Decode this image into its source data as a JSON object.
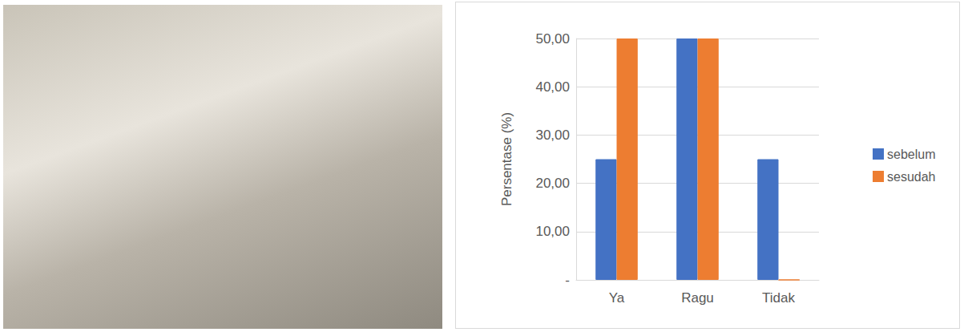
{
  "chart_data": {
    "type": "bar",
    "y_label": "Persentase (%)",
    "categories": [
      "Ya",
      "Ragu",
      "Tidak"
    ],
    "series": [
      {
        "name": "sebelum",
        "color": "#4472c4",
        "values": [
          25,
          50,
          25
        ]
      },
      {
        "name": "sesudah",
        "color": "#ed7d31",
        "values": [
          50,
          50,
          0
        ]
      }
    ],
    "ylim": [
      0,
      50
    ],
    "yticks": [
      {
        "value": 0,
        "label": "-"
      },
      {
        "value": 10,
        "label": "10,00"
      },
      {
        "value": 20,
        "label": "20,00"
      },
      {
        "value": 30,
        "label": "30,00"
      },
      {
        "value": 40,
        "label": "40,00"
      },
      {
        "value": 50,
        "label": "50,00"
      }
    ],
    "grid": true,
    "legend": "right"
  }
}
